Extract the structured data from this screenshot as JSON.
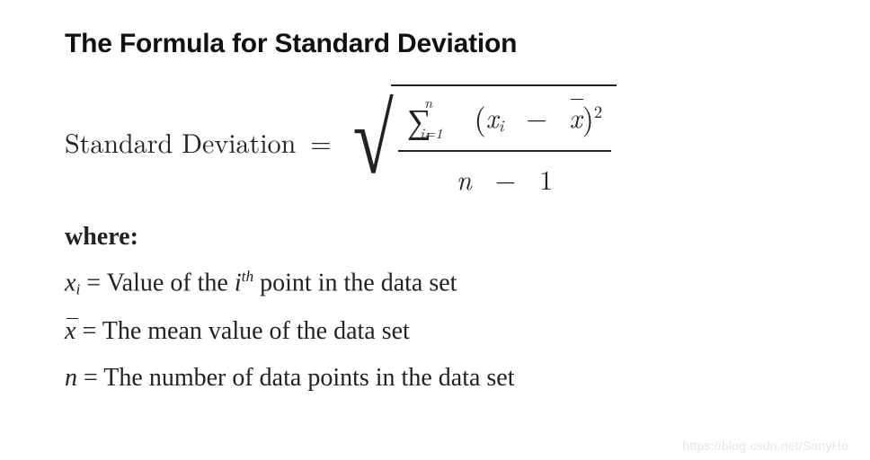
{
  "title": "The Formula for Standard Deviation",
  "formula": {
    "lhs": "Standard Deviation",
    "equals": "=",
    "sigma_lower": "i=1",
    "sigma_upper": "n",
    "term_x": "x",
    "term_sub_i": "i",
    "minus": "−",
    "term_xbar": "x",
    "power": "2",
    "denom_n": "n",
    "denom_minus": "−",
    "denom_one": "1"
  },
  "where": {
    "label": "where:",
    "xi": {
      "sym_x": "x",
      "sym_sub": "i",
      "eq": " = ",
      "txt_pre": "Value of the ",
      "sym_i": "i",
      "sym_th": "th",
      "txt_post": " point in the data set"
    },
    "xbar": {
      "sym": "x",
      "eq": " = ",
      "txt": "The mean value of the data set"
    },
    "n": {
      "sym": "n",
      "eq": " = ",
      "txt": "The number of data points in the data set"
    }
  },
  "watermark": "https://blog.csdn.net/SanyHo",
  "colors": {
    "text": "#222222",
    "bg": "#ffffff",
    "watermark": "#e6e6e6"
  },
  "fontsizes": {
    "title": 30,
    "formula": 30,
    "where_label": 28,
    "definitions": 28,
    "watermark": 14
  }
}
